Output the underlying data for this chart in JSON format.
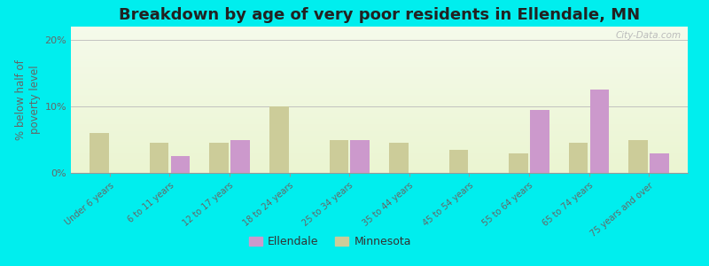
{
  "title": "Breakdown by age of very poor residents in Ellendale, MN",
  "ylabel": "% below half of\npoverty level",
  "categories": [
    "Under 6 years",
    "6 to 11 years",
    "12 to 17 years",
    "18 to 24 years",
    "25 to 34 years",
    "35 to 44 years",
    "45 to 54 years",
    "55 to 64 years",
    "65 to 74 years",
    "75 years and over"
  ],
  "ellendale_vals": [
    0,
    2.5,
    5.0,
    0,
    5.0,
    0,
    0,
    9.5,
    12.5,
    3.0
  ],
  "minnesota_vals": [
    6.0,
    4.5,
    4.5,
    10.0,
    5.0,
    4.5,
    3.5,
    3.0,
    4.5,
    5.0
  ],
  "ellendale_color": "#cc99cc",
  "minnesota_color": "#cccc99",
  "background_color": "#00eeee",
  "ylim": [
    0,
    22
  ],
  "yticks": [
    0,
    10,
    20
  ],
  "ytick_labels": [
    "0%",
    "10%",
    "20%"
  ],
  "title_fontsize": 13,
  "axis_label_fontsize": 8.5,
  "tick_fontsize": 8,
  "legend_labels": [
    "Ellendale",
    "Minnesota"
  ],
  "watermark": "City-Data.com",
  "bar_width": 0.32
}
